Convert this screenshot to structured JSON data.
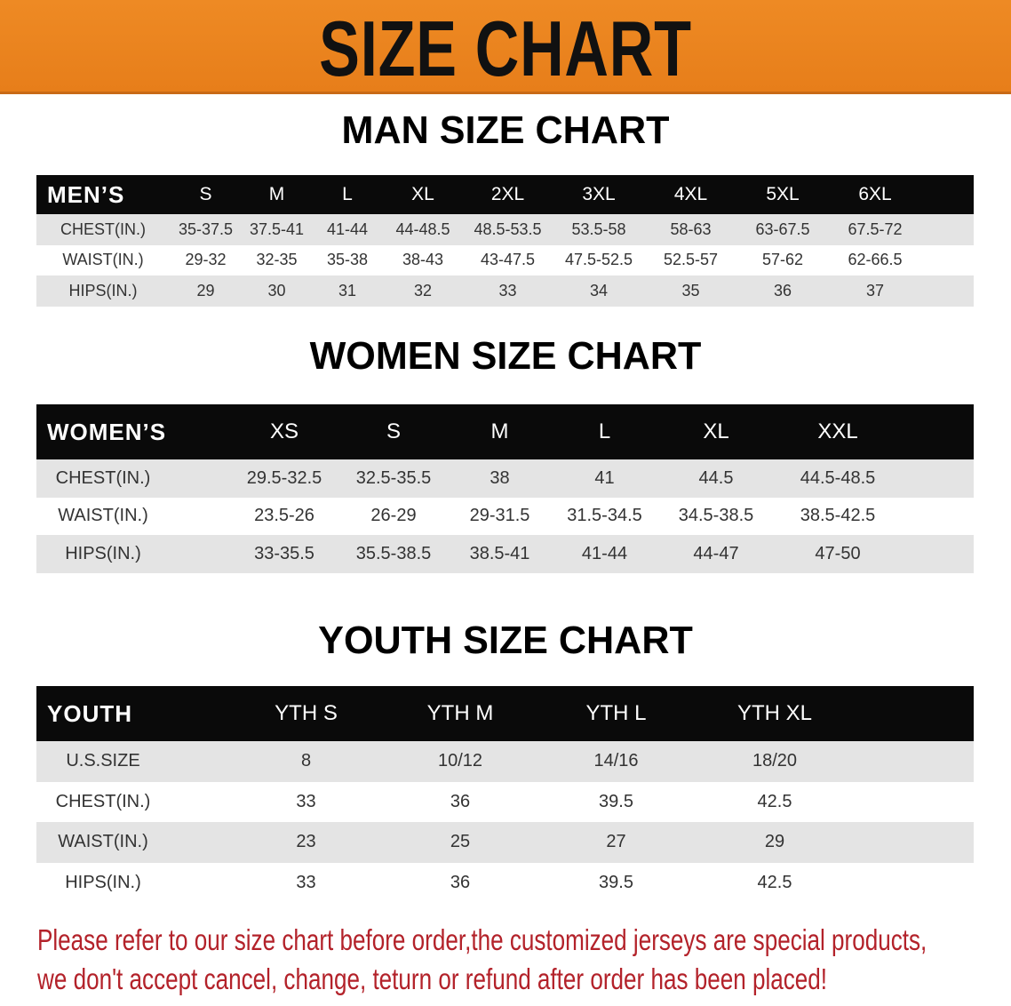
{
  "banner_title": "SIZE CHART",
  "men": {
    "title": "MAN SIZE CHART",
    "header": "MEN’S",
    "sizes": [
      "S",
      "M",
      "L",
      "XL",
      "2XL",
      "3XL",
      "4XL",
      "5XL",
      "6XL"
    ],
    "rows": [
      {
        "label": "CHEST(IN.)",
        "values": [
          "35-37.5",
          "37.5-41",
          "41-44",
          "44-48.5",
          "48.5-53.5",
          "53.5-58",
          "58-63",
          "63-67.5",
          "67.5-72"
        ]
      },
      {
        "label": "WAIST(IN.)",
        "values": [
          "29-32",
          "32-35",
          "35-38",
          "38-43",
          "43-47.5",
          "47.5-52.5",
          "52.5-57",
          "57-62",
          "62-66.5"
        ]
      },
      {
        "label": "HIPS(IN.)",
        "values": [
          "29",
          "30",
          "31",
          "32",
          "33",
          "34",
          "35",
          "36",
          "37"
        ]
      }
    ]
  },
  "women": {
    "title": "WOMEN SIZE CHART",
    "header": "WOMEN’S",
    "sizes": [
      "XS",
      "S",
      "M",
      "L",
      "XL",
      "XXL"
    ],
    "rows": [
      {
        "label": "CHEST(IN.)",
        "values": [
          "29.5-32.5",
          "32.5-35.5",
          "38",
          "41",
          "44.5",
          "44.5-48.5"
        ]
      },
      {
        "label": "WAIST(IN.)",
        "values": [
          "23.5-26",
          "26-29",
          "29-31.5",
          "31.5-34.5",
          "34.5-38.5",
          "38.5-42.5"
        ]
      },
      {
        "label": "HIPS(IN.)",
        "values": [
          "33-35.5",
          "35.5-38.5",
          "38.5-41",
          "41-44",
          "44-47",
          "47-50"
        ]
      }
    ]
  },
  "youth": {
    "title": "YOUTH SIZE CHART",
    "header": "YOUTH",
    "sizes": [
      "YTH S",
      "YTH M",
      "YTH L",
      "YTH XL"
    ],
    "rows": [
      {
        "label": "U.S.SIZE",
        "values": [
          "8",
          "10/12",
          "14/16",
          "18/20"
        ]
      },
      {
        "label": "CHEST(IN.)",
        "values": [
          "33",
          "36",
          "39.5",
          "42.5"
        ]
      },
      {
        "label": "WAIST(IN.)",
        "values": [
          "23",
          "25",
          "27",
          "29"
        ]
      },
      {
        "label": "HIPS(IN.)",
        "values": [
          "33",
          "36",
          "39.5",
          "42.5"
        ]
      }
    ]
  },
  "note": {
    "line1": "Please refer to our size chart before order,the customized jerseys are special products,",
    "line2": "we don't accept cancel, change, teturn or refund after order has been placed!"
  },
  "colors": {
    "banner": "#e98320",
    "header": "#0a0a0a",
    "note": "#b3222a",
    "row_gray": "#e4e4e4"
  }
}
